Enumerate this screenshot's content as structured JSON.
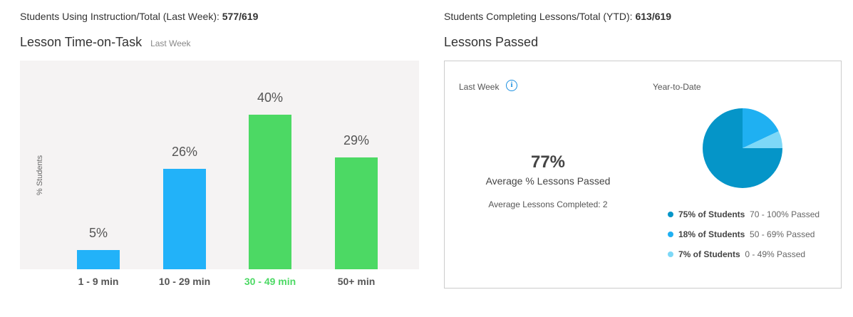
{
  "stats": {
    "left_label": "Students Using Instruction/Total (Last Week):",
    "left_value": "577/619",
    "right_label": "Students Completing Lessons/Total (YTD):",
    "right_value": "613/619"
  },
  "time_on_task": {
    "title": "Lesson Time-on-Task",
    "subtitle": "Last Week"
  },
  "lessons_passed": {
    "title": "Lessons Passed",
    "last_week_label": "Last Week",
    "ytd_label": "Year-to-Date",
    "big_value": "77%",
    "big_label": "Average % Lessons Passed",
    "avg_completed": "Average Lessons Completed:  2",
    "legend": [
      {
        "strong": "75% of Students",
        "range": "70 - 100% Passed",
        "color": "#0595c8"
      },
      {
        "strong": "18% of Students",
        "range": "50 - 69% Passed",
        "color": "#1fb0f2"
      },
      {
        "strong": "7% of Students",
        "range": "0 - 49% Passed",
        "color": "#7dd8f7"
      }
    ]
  },
  "chart_data": [
    {
      "type": "bar",
      "ylabel": "% Students",
      "categories": [
        "1 - 9 min",
        "10 - 29 min",
        "30 - 49 min",
        "50+ min"
      ],
      "values": [
        5,
        26,
        40,
        29
      ],
      "value_labels": [
        "5%",
        "26%",
        "40%",
        "29%"
      ],
      "colors": [
        "#22b2f9",
        "#22b2f9",
        "#4cd964",
        "#4cd964"
      ],
      "tick_colors": [
        "#555555",
        "#555555",
        "#4cd964",
        "#555555"
      ],
      "ylim": [
        0,
        50
      ],
      "grid": false
    },
    {
      "type": "pie",
      "labels": [
        "70 - 100% Passed",
        "50 - 69% Passed",
        "0 - 49% Passed"
      ],
      "values": [
        75,
        18,
        7
      ],
      "colors": [
        "#0595c8",
        "#1fb0f2",
        "#7dd8f7"
      ]
    }
  ]
}
